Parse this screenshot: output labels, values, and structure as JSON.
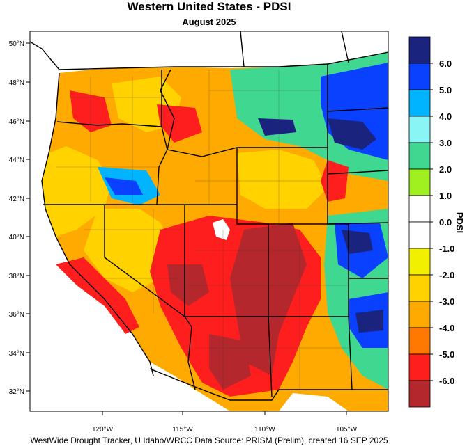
{
  "title": "Western United States - PDSI",
  "subtitle": "August 2025",
  "footer": "WestWide Drought Tracker, U Idaho/WRCC Data Source: PRISM (Prelim), created 16 SEP 2025",
  "legend": {
    "title": "PDSI",
    "labels": [
      "6.0",
      "5.0",
      "4.0",
      "3.0",
      "2.0",
      "1.0",
      "0.0",
      "-1.0",
      "-2.0",
      "-3.0",
      "-4.0",
      "-5.0",
      "-6.0"
    ],
    "colors": [
      "#1a237e",
      "#0a40ff",
      "#00b4ff",
      "#8af5f5",
      "#40d890",
      "#a0f020",
      "#ffffff",
      "#ffffff",
      "#f0f000",
      "#ffd200",
      "#ffaa00",
      "#ff7800",
      "#ff1e1e",
      "#b4282d"
    ]
  },
  "axes": {
    "lat_labels": [
      "50°N",
      "48°N",
      "46°N",
      "44°N",
      "42°N",
      "40°N",
      "38°N",
      "36°N",
      "34°N",
      "32°N"
    ],
    "lon_labels": [
      "120°W",
      "115°W",
      "110°W",
      "105°W"
    ]
  }
}
